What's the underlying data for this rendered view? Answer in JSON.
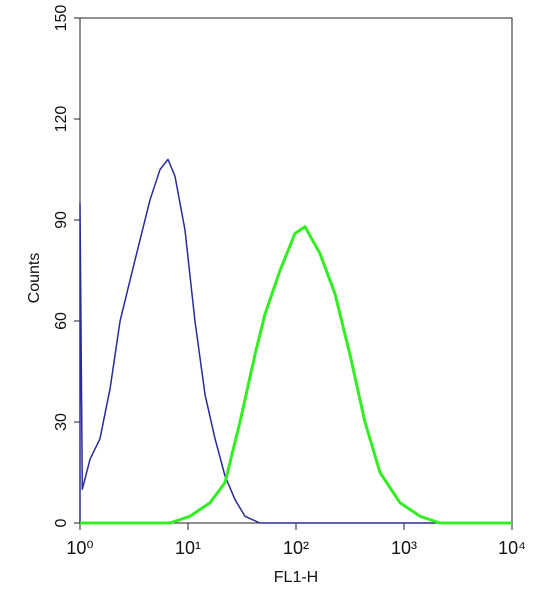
{
  "chart_data": {
    "type": "line",
    "x_label": "FL1-H",
    "y_label": "Counts",
    "xscale": "log",
    "xlim": [
      1,
      10000
    ],
    "xticks": [
      {
        "value": 1,
        "label": "10⁰"
      },
      {
        "value": 10,
        "label": "10¹"
      },
      {
        "value": 100,
        "label": "10²"
      },
      {
        "value": 1000,
        "label": "10³"
      },
      {
        "value": 10000,
        "label": "10⁴"
      }
    ],
    "ylim": [
      0,
      150
    ],
    "yticks": [
      0,
      30,
      60,
      90,
      120,
      150
    ],
    "series": [
      {
        "color": "#2a2a9c",
        "x": [
          1,
          1,
          1.05,
          1.24,
          1.53,
          1.9,
          2.35,
          2.9,
          3.59,
          4.45,
          5.51,
          6.53,
          7.58,
          9.38,
          11.6,
          14.4,
          17.8,
          22.0,
          27.2,
          33.7,
          46.4,
          10000
        ],
        "values": [
          0,
          95,
          10,
          19,
          25,
          40,
          60,
          72,
          84,
          96,
          105,
          108,
          103,
          87,
          60,
          38,
          25,
          14,
          7,
          2,
          0,
          0
        ]
      },
      {
        "color": "#33ee22",
        "x": [
          1,
          6.81,
          10.4,
          16.0,
          22.0,
          30.3,
          41.7,
          51.6,
          71.1,
          97.9,
          121,
          167,
          230,
          316,
          435,
          600,
          918,
          1410,
          2150,
          10000
        ],
        "values": [
          0,
          0,
          2,
          6,
          12,
          30,
          50,
          62,
          75,
          86,
          88,
          80,
          68,
          50,
          30,
          15,
          6,
          2,
          0,
          0
        ]
      }
    ]
  }
}
